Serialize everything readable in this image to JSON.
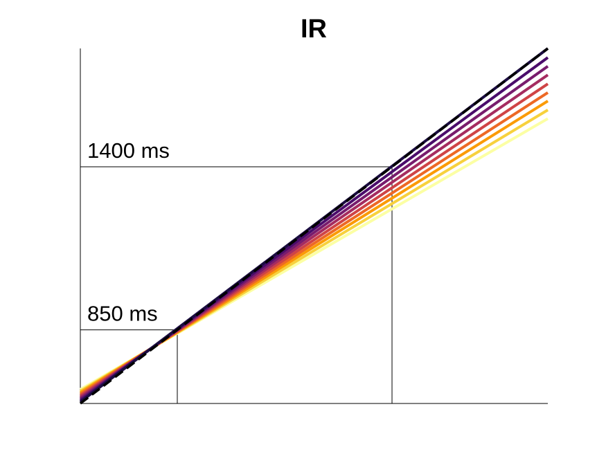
{
  "chart_data": {
    "type": "line",
    "title": "IR",
    "xlabel": "",
    "ylabel": "",
    "x_ticks": [],
    "y_ticks": [],
    "grid": false,
    "legend": "none",
    "identity": {
      "color": "#000000",
      "style": "dashed"
    },
    "series": [
      {
        "color": "#1b0c41",
        "x": [
          0,
          1
        ],
        "y": [
          0.0045,
          1.0
        ]
      },
      {
        "color": "#4a0c6b",
        "x": [
          0,
          1
        ],
        "y": [
          0.0088,
          0.9745
        ]
      },
      {
        "color": "#781c6d",
        "x": [
          0,
          1
        ],
        "y": [
          0.0132,
          0.9499
        ]
      },
      {
        "color": "#a52c60",
        "x": [
          0,
          1
        ],
        "y": [
          0.0176,
          0.9254
        ]
      },
      {
        "color": "#cf4446",
        "x": [
          0,
          1
        ],
        "y": [
          0.0219,
          0.9002
        ]
      },
      {
        "color": "#ed6925",
        "x": [
          0,
          1
        ],
        "y": [
          0.0263,
          0.8757
        ]
      },
      {
        "color": "#fb9b06",
        "x": [
          0,
          1
        ],
        "y": [
          0.0307,
          0.8519
        ]
      },
      {
        "color": "#f7d13d",
        "x": [
          0,
          1
        ],
        "y": [
          0.035,
          0.8268
        ]
      },
      {
        "color": "#fcffa4",
        "x": [
          0,
          1
        ],
        "y": [
          0.0394,
          0.8023
        ]
      }
    ],
    "reference_lines": [
      {
        "label": "850 ms",
        "x": 0.2074,
        "y": 0.2074
      },
      {
        "label": "1400 ms",
        "x": 0.6667,
        "y": 0.6667
      }
    ]
  }
}
